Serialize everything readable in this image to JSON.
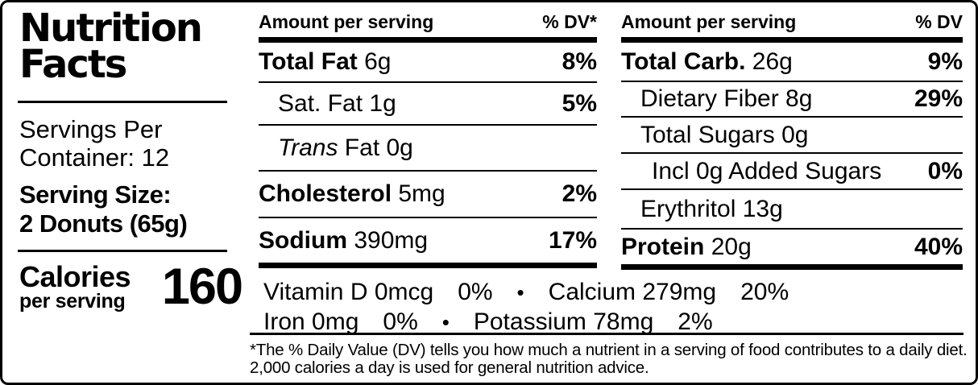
{
  "colors": {
    "text": "#000000",
    "background": "#ffffff",
    "rule": "#000000"
  },
  "panel": {
    "title_line1": "Nutrition",
    "title_line2": "Facts",
    "servings_line1": "Servings Per",
    "servings_line2": "Container: 12",
    "serving_size_line1": "Serving Size:",
    "serving_size_line2": "2 Donuts (65g)",
    "calories_label": "Calories",
    "calories_sub": "per serving",
    "calories_value": "160"
  },
  "columns": {
    "middle": {
      "header": {
        "amount": "Amount per serving",
        "dv": "% DV*"
      },
      "rows": [
        {
          "name_bold": "Total Fat",
          "name_rest": " 6g",
          "dv": "8%"
        },
        {
          "name_rest": "Sat. Fat 1g",
          "dv": "5%"
        },
        {
          "name_italic": "Trans",
          "name_rest": " Fat 0g",
          "dv": ""
        },
        {
          "name_bold": "Cholesterol",
          "name_rest": " 5mg",
          "dv": "2%"
        },
        {
          "name_bold": "Sodium",
          "name_rest": " 390mg",
          "dv": "17%"
        }
      ]
    },
    "right": {
      "header": {
        "amount": "Amount per serving",
        "dv": "% DV"
      },
      "rows": [
        {
          "name_bold": "Total Carb.",
          "name_rest": " 26g",
          "dv": "9%"
        },
        {
          "name_rest": "Dietary Fiber 8g",
          "dv": "29%"
        },
        {
          "name_rest": "Total Sugars 0g",
          "dv": ""
        },
        {
          "name_rest": "Incl 0g Added Sugars",
          "dv": "0%"
        },
        {
          "name_rest": "Erythritol 13g",
          "dv": ""
        },
        {
          "name_bold": "Protein",
          "name_rest": " 20g",
          "dv": "40%"
        }
      ]
    }
  },
  "micronutrients": {
    "row1": {
      "item1": "Vitamin D 0mcg",
      "dv1": "0%",
      "sep": "•",
      "item2": "Calcium 279mg",
      "dv2": "20%"
    },
    "row2": {
      "item1": "Iron 0mg",
      "dv1": "0%",
      "sep": "•",
      "item2": "Potassium 78mg",
      "dv2": "2%"
    }
  },
  "footnote": {
    "line1": "*The % Daily Value (DV) tells you how much a nutrient in a serving of food contributes to a daily diet.",
    "line2": "2,000 calories a day is used for general nutrition advice."
  }
}
